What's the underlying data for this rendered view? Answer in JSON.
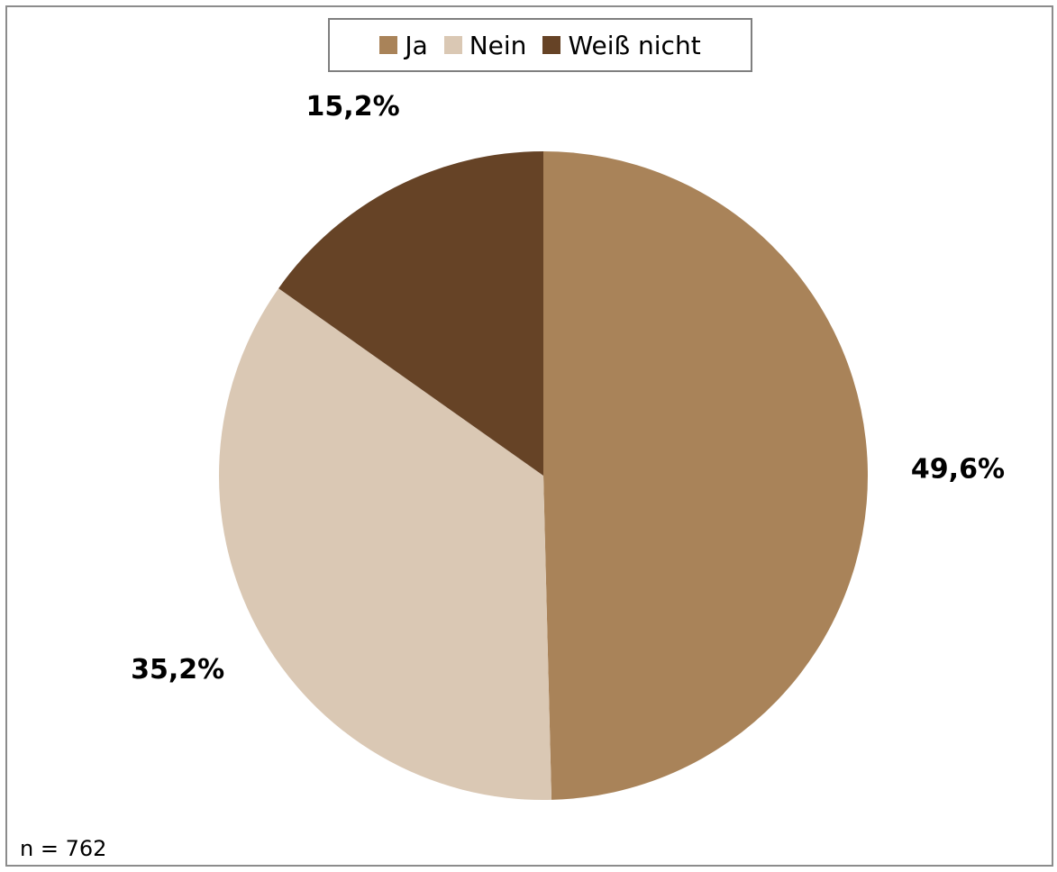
{
  "chart_data": {
    "type": "pie",
    "title": "",
    "categories": [
      "Ja",
      "Nein",
      "Weiß nicht"
    ],
    "values": [
      49.6,
      35.2,
      15.2
    ],
    "data_labels": [
      "49,6%",
      "35,2%",
      "15,2%"
    ],
    "colors": [
      "#A98359",
      "#DAC8B4",
      "#664326"
    ],
    "legend_position": "top",
    "start_angle": "12 o'clock, clockwise"
  },
  "footnote": "n = 762"
}
